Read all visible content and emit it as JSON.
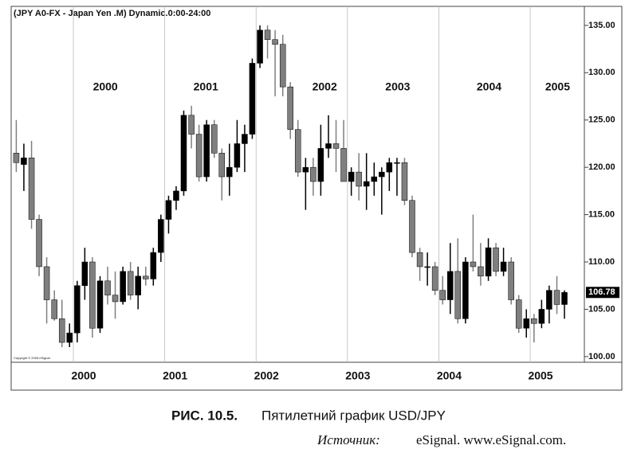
{
  "chart_data": {
    "type": "candlestick",
    "title": "(JPY A0-FX - Japan Yen .M) Dynamic.0:00-24:00",
    "copyright": "Copyright © 2005 eSignal",
    "caption_label": "РИС. 10.5.",
    "caption_text": "Пятилетний график USD/JPY",
    "source_label": "Источник:",
    "source_text": "eSignal. www.eSignal.com.",
    "annotations": [
      "2000",
      "2001",
      "2002",
      "2003",
      "2004",
      "2005"
    ],
    "last_price": 106.78,
    "xlim": [
      1999.319,
      2005.593
    ],
    "xticks": [
      2000,
      2001,
      2002,
      2003,
      2004,
      2005
    ],
    "ylim": [
      99.4,
      136.0
    ],
    "yticks": [
      {
        "value": 100,
        "label": "100.00"
      },
      {
        "value": 105,
        "label": "105.00"
      },
      {
        "value": 110,
        "label": "110.00"
      },
      {
        "value": 115,
        "label": "115.00"
      },
      {
        "value": 120,
        "label": "120.00"
      },
      {
        "value": 125,
        "label": "125.00"
      },
      {
        "value": 130,
        "label": "130.00"
      },
      {
        "value": 135,
        "label": "135.00"
      }
    ],
    "up_color": "#000000",
    "down_color": "#7f7f7f",
    "x": [
      1999.375,
      1999.458,
      1999.542,
      1999.625,
      1999.708,
      1999.792,
      1999.875,
      1999.958,
      2000.042,
      2000.125,
      2000.208,
      2000.292,
      2000.375,
      2000.458,
      2000.542,
      2000.625,
      2000.708,
      2000.792,
      2000.875,
      2000.958,
      2001.042,
      2001.125,
      2001.208,
      2001.292,
      2001.375,
      2001.458,
      2001.542,
      2001.625,
      2001.708,
      2001.792,
      2001.875,
      2001.958,
      2002.042,
      2002.125,
      2002.208,
      2002.292,
      2002.375,
      2002.458,
      2002.542,
      2002.625,
      2002.708,
      2002.792,
      2002.875,
      2002.958,
      2003.042,
      2003.125,
      2003.208,
      2003.292,
      2003.375,
      2003.458,
      2003.542,
      2003.625,
      2003.708,
      2003.792,
      2003.875,
      2003.958,
      2004.042,
      2004.125,
      2004.208,
      2004.292,
      2004.375,
      2004.458,
      2004.542,
      2004.625,
      2004.708,
      2004.792,
      2004.875,
      2004.958,
      2005.042,
      2005.125,
      2005.208,
      2005.292,
      2005.375
    ],
    "open": [
      121.5,
      120.3,
      121,
      114.5,
      109.5,
      106,
      104,
      101.5,
      102.5,
      107.5,
      110,
      103,
      108,
      106.5,
      105.8,
      109,
      106.5,
      108.5,
      108.2,
      111,
      114.5,
      116.5,
      117.5,
      125.5,
      123.5,
      119,
      124.5,
      121.5,
      119,
      120,
      122.5,
      123.5,
      131,
      134.5,
      133.5,
      133,
      128.5,
      124,
      119.5,
      120,
      118.5,
      122,
      122.5,
      122,
      118.5,
      119.5,
      118,
      118.5,
      119,
      119.5,
      120.5,
      120.5,
      116.5,
      111,
      109.5,
      109.5,
      107,
      106,
      109,
      104,
      110,
      109.5,
      108.5,
      111.5,
      109,
      110,
      106,
      103,
      104,
      103.5,
      105,
      107,
      105.5
    ],
    "high": [
      125,
      122.5,
      122.8,
      115,
      110.5,
      107,
      106,
      103.5,
      108,
      111.5,
      110.5,
      108.5,
      109.5,
      109,
      109.5,
      110,
      109.5,
      109.5,
      111.5,
      115,
      117,
      118,
      126,
      126.5,
      124.5,
      125,
      125,
      122,
      122.5,
      125,
      124.5,
      131.5,
      135,
      135,
      134.5,
      134,
      129,
      125,
      121,
      121,
      124.5,
      125.5,
      125,
      125,
      120,
      121.5,
      121.5,
      120.5,
      120,
      121,
      121,
      121,
      117,
      111.5,
      111,
      110,
      108.5,
      112,
      112.5,
      110.5,
      115,
      112,
      112.5,
      112,
      111.5,
      110.5,
      106.5,
      105,
      104.5,
      106,
      107.5,
      108.5,
      107
    ],
    "low": [
      119.5,
      117.5,
      113.5,
      108.5,
      103.5,
      103.8,
      101,
      101,
      101.5,
      106,
      102,
      102.5,
      105.5,
      104,
      105.5,
      106,
      105,
      107.5,
      107.5,
      110,
      113,
      115.5,
      117,
      122,
      118.5,
      118.5,
      121,
      116.5,
      117,
      119.5,
      119.5,
      123,
      130.5,
      131.5,
      127.5,
      127.5,
      123,
      119,
      115.5,
      117,
      117,
      121,
      119.5,
      118.5,
      117,
      116.5,
      115.5,
      117,
      115,
      117.5,
      117,
      116,
      110.5,
      108,
      107.5,
      106.5,
      105.5,
      104.5,
      103.5,
      103.5,
      109,
      107.5,
      108,
      108.5,
      108.5,
      105.5,
      102.5,
      102,
      101.5,
      103,
      103.5,
      104.5,
      104
    ],
    "close": [
      120.5,
      121,
      114.5,
      109.5,
      106,
      104,
      101.5,
      102.5,
      107.5,
      110,
      103,
      108,
      106.5,
      105.8,
      109,
      106.5,
      108.5,
      108.2,
      111,
      114.5,
      116.5,
      117.5,
      125.5,
      123.5,
      119,
      124.5,
      121.5,
      119,
      120,
      122.5,
      123.5,
      131,
      134.5,
      133.5,
      133,
      128.5,
      124,
      119.5,
      120,
      118.5,
      122,
      122.5,
      122,
      118.5,
      119.5,
      118,
      118.5,
      119,
      119.5,
      120.5,
      120.5,
      116.5,
      111,
      109.5,
      109.5,
      107,
      106,
      109,
      104,
      110,
      109.5,
      108.5,
      111.5,
      109,
      110,
      106,
      103,
      104,
      103.5,
      105,
      107,
      105.5,
      106.78
    ]
  }
}
